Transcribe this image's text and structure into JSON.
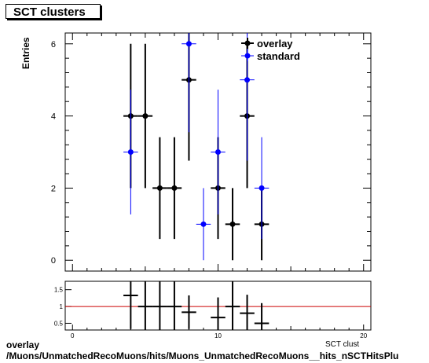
{
  "title": "SCT clusters",
  "footer": {
    "line1": "overlay",
    "line2": "/Muons/UnmatchedRecoMuons/hits/Muons_UnmatchedRecoMuons__hits_nSCTHitsPlu",
    "xaxis_fragment": "SCT clust"
  },
  "chart_data": [
    {
      "type": "scatter",
      "ylabel": "Entries",
      "xlim": [
        -0.5,
        20.5
      ],
      "ylim": [
        -0.3,
        6.3
      ],
      "x_ticks": [
        0,
        10,
        20
      ],
      "y_ticks": [
        0,
        2,
        4,
        6
      ],
      "legend": {
        "placement": "top-right",
        "entries": [
          "overlay",
          "standard"
        ]
      },
      "series": [
        {
          "name": "overlay",
          "color": "#000000",
          "points": [
            {
              "x": 4,
              "y": 4,
              "err": 2.0
            },
            {
              "x": 5,
              "y": 4,
              "err": 2.0
            },
            {
              "x": 6,
              "y": 2,
              "err": 1.41
            },
            {
              "x": 7,
              "y": 2,
              "err": 1.41
            },
            {
              "x": 8,
              "y": 5,
              "err": 2.24
            },
            {
              "x": 10,
              "y": 2,
              "err": 1.41
            },
            {
              "x": 11,
              "y": 1,
              "err": 1.0
            },
            {
              "x": 12,
              "y": 4,
              "err": 2.0
            },
            {
              "x": 13,
              "y": 1,
              "err": 1.0
            }
          ]
        },
        {
          "name": "standard",
          "color": "#0000ff",
          "points": [
            {
              "x": 4,
              "y": 3,
              "err": 1.73
            },
            {
              "x": 8,
              "y": 6,
              "err": 2.45
            },
            {
              "x": 9,
              "y": 1,
              "err": 1.0
            },
            {
              "x": 10,
              "y": 3,
              "err": 1.73
            },
            {
              "x": 12,
              "y": 5,
              "err": 2.24
            },
            {
              "x": 13,
              "y": 2,
              "err": 1.41
            }
          ]
        }
      ]
    },
    {
      "type": "scatter",
      "xlim": [
        -0.5,
        20.5
      ],
      "ylim": [
        0.3,
        1.75
      ],
      "x_ticks": [
        0,
        10,
        20
      ],
      "y_ticks": [
        0.5,
        1,
        1.5
      ],
      "reference_line": {
        "y": 1,
        "color": "#cc0000"
      },
      "points": [
        {
          "x": 4,
          "y": 1.33,
          "err": 1.0
        },
        {
          "x": 5,
          "y": 1.0,
          "err": 1.0
        },
        {
          "x": 6,
          "y": 1.0,
          "err": 1.0
        },
        {
          "x": 7,
          "y": 1.0,
          "err": 1.0
        },
        {
          "x": 8,
          "y": 0.83,
          "err": 0.5
        },
        {
          "x": 10,
          "y": 0.67,
          "err": 0.6
        },
        {
          "x": 11,
          "y": 1.0,
          "err": 1.0
        },
        {
          "x": 12,
          "y": 0.8,
          "err": 0.55
        },
        {
          "x": 13,
          "y": 0.5,
          "err": 0.6
        }
      ]
    }
  ]
}
